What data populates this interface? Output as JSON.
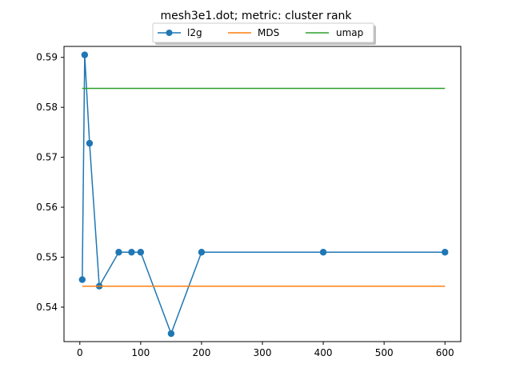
{
  "chart_data": {
    "type": "line",
    "title": "mesh3e1.dot; metric: cluster rank",
    "xlabel": "",
    "ylabel": "",
    "xlim": [
      -26,
      626
    ],
    "ylim": [
      0.5331,
      0.5922
    ],
    "xticks": [
      0,
      100,
      200,
      300,
      400,
      500,
      600
    ],
    "yticks": [
      0.54,
      0.55,
      0.56,
      0.57,
      0.58,
      0.59
    ],
    "xtick_labels": [
      "0",
      "100",
      "200",
      "300",
      "400",
      "500",
      "600"
    ],
    "ytick_labels": [
      "0.54",
      "0.55",
      "0.56",
      "0.57",
      "0.58",
      "0.59"
    ],
    "grid": false,
    "legend": {
      "placement": "top-center",
      "entries": [
        "l2g",
        "MDS",
        "umap"
      ]
    },
    "series": [
      {
        "name": "l2g",
        "color": "#1f77b4",
        "marker": "circle",
        "x": [
          4,
          8,
          16,
          32,
          64,
          85,
          100,
          150,
          200,
          400,
          600
        ],
        "y": [
          0.5455,
          0.5905,
          0.5728,
          0.5442,
          0.551,
          0.551,
          0.551,
          0.5347,
          0.551,
          0.551,
          0.551
        ]
      },
      {
        "name": "MDS",
        "color": "#ff7f0e",
        "marker": "none",
        "x": [
          4,
          600
        ],
        "y": [
          0.5442,
          0.5442
        ]
      },
      {
        "name": "umap",
        "color": "#2ca02c",
        "marker": "none",
        "x": [
          4,
          600
        ],
        "y": [
          0.5838,
          0.5838
        ]
      }
    ]
  }
}
